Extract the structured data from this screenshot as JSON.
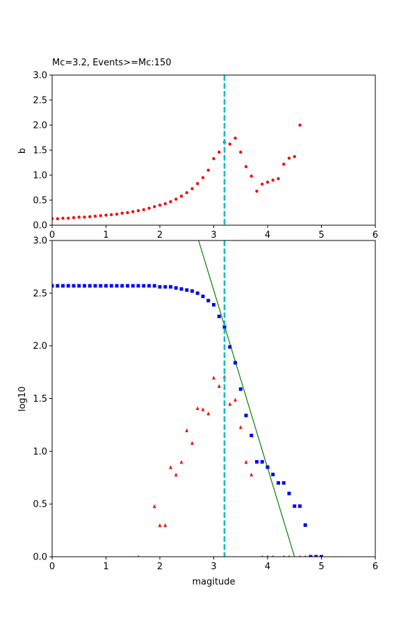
{
  "chart_data": [
    {
      "type": "scatter",
      "title": "Mc=3.2, Events>=Mc:150",
      "xlabel": "",
      "ylabel": "b",
      "xlim": [
        0,
        6
      ],
      "ylim": [
        0,
        3
      ],
      "xticks": [
        "0",
        "1",
        "2",
        "3",
        "4",
        "5",
        "6"
      ],
      "yticks": [
        "0.0",
        "0.5",
        "1.0",
        "1.5",
        "2.0",
        "2.5",
        "3.0"
      ],
      "mc_line": 3.2,
      "colors": {
        "points": "#ff0000",
        "mc_line": "#00bfbf"
      },
      "series": [
        {
          "marker": "dot",
          "x": [
            0.0,
            0.1,
            0.2,
            0.3,
            0.4,
            0.5,
            0.6,
            0.7,
            0.8,
            0.9,
            1.0,
            1.1,
            1.2,
            1.3,
            1.4,
            1.5,
            1.6,
            1.7,
            1.8,
            1.9,
            2.0,
            2.1,
            2.2,
            2.3,
            2.4,
            2.5,
            2.6,
            2.7,
            2.8,
            2.9,
            3.0,
            3.1,
            3.2,
            3.3,
            3.4,
            3.5,
            3.6,
            3.7,
            3.8,
            3.9,
            4.0,
            4.1,
            4.2,
            4.3,
            4.4,
            4.5,
            4.6
          ],
          "y": [
            0.13,
            0.13,
            0.14,
            0.14,
            0.15,
            0.16,
            0.16,
            0.17,
            0.18,
            0.19,
            0.2,
            0.21,
            0.22,
            0.24,
            0.25,
            0.27,
            0.29,
            0.31,
            0.34,
            0.37,
            0.4,
            0.43,
            0.47,
            0.52,
            0.58,
            0.65,
            0.73,
            0.83,
            0.95,
            1.1,
            1.33,
            1.46,
            1.66,
            1.62,
            1.74,
            1.46,
            1.17,
            0.98,
            0.68,
            0.82,
            0.86,
            0.9,
            0.93,
            1.22,
            1.34,
            1.37,
            2.0
          ]
        }
      ]
    },
    {
      "type": "scatter",
      "title": "",
      "xlabel": "magitude",
      "ylabel": "log10",
      "xlim": [
        0,
        6
      ],
      "ylim": [
        0,
        3
      ],
      "xticks": [
        "0",
        "1",
        "2",
        "3",
        "4",
        "5",
        "6"
      ],
      "yticks": [
        "0.0",
        "0.5",
        "1.0",
        "1.5",
        "2.0",
        "2.5",
        "3.0"
      ],
      "mc_line": 3.2,
      "fit_line": {
        "x": [
          2.72,
          4.5
        ],
        "y": [
          3.0,
          0.0
        ]
      },
      "colors": {
        "cumulative": "#0000ff",
        "noncumulative": "#ff0000",
        "fit": "#008000",
        "mc_line": "#00bfbf"
      },
      "series": [
        {
          "marker": "square",
          "x": [
            0.0,
            0.1,
            0.2,
            0.3,
            0.4,
            0.5,
            0.6,
            0.7,
            0.8,
            0.9,
            1.0,
            1.1,
            1.2,
            1.3,
            1.4,
            1.5,
            1.6,
            1.7,
            1.8,
            1.9,
            2.0,
            2.1,
            2.2,
            2.3,
            2.4,
            2.5,
            2.6,
            2.7,
            2.8,
            2.9,
            3.0,
            3.1,
            3.2,
            3.3,
            3.4,
            3.5,
            3.6,
            3.7,
            3.8,
            3.9,
            4.0,
            4.1,
            4.2,
            4.3,
            4.4,
            4.5,
            4.6,
            4.7,
            4.8,
            4.9,
            5.0
          ],
          "y": [
            2.57,
            2.57,
            2.57,
            2.57,
            2.57,
            2.57,
            2.57,
            2.57,
            2.57,
            2.57,
            2.57,
            2.57,
            2.57,
            2.57,
            2.57,
            2.57,
            2.57,
            2.57,
            2.57,
            2.57,
            2.56,
            2.56,
            2.56,
            2.55,
            2.54,
            2.53,
            2.52,
            2.5,
            2.47,
            2.43,
            2.39,
            2.28,
            2.18,
            1.99,
            1.84,
            1.59,
            1.34,
            1.15,
            0.9,
            0.9,
            0.85,
            0.78,
            0.7,
            0.7,
            0.6,
            0.48,
            0.48,
            0.3,
            0.0,
            0.0,
            0.0
          ]
        },
        {
          "marker": "triangle",
          "x": [
            1.6,
            1.9,
            2.0,
            2.1,
            2.2,
            2.3,
            2.4,
            2.5,
            2.6,
            2.7,
            2.8,
            2.9,
            3.0,
            3.1,
            3.2,
            3.3,
            3.4,
            3.5,
            3.6,
            3.7,
            3.9,
            4.0,
            4.1,
            4.3,
            4.4,
            4.6,
            4.7
          ],
          "y": [
            0.0,
            0.48,
            0.3,
            0.3,
            0.85,
            0.78,
            0.9,
            1.2,
            1.08,
            1.41,
            1.4,
            1.36,
            1.7,
            1.62,
            1.71,
            1.45,
            1.49,
            1.23,
            0.9,
            0.78,
            0.0,
            0.0,
            0.0,
            0.0,
            0.0,
            0.0,
            0.0
          ]
        }
      ]
    }
  ]
}
